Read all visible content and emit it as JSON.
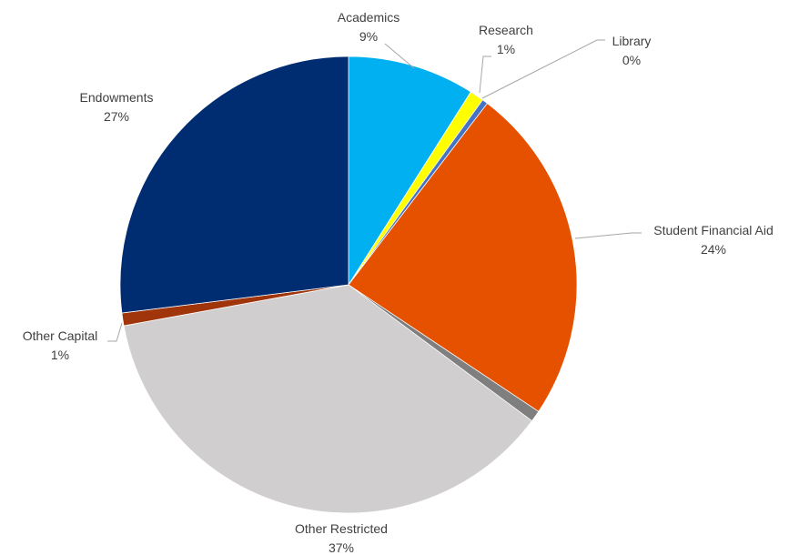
{
  "chart_data": {
    "type": "pie",
    "legend": "none",
    "slices": [
      {
        "key": "academics",
        "label": "Academics",
        "pct_label": "9%",
        "value": 9.0,
        "color": "#00b0f0"
      },
      {
        "key": "research",
        "label": "Research",
        "pct_label": "1%",
        "value": 1.0,
        "color": "#ffff00"
      },
      {
        "key": "library",
        "label": "Library",
        "pct_label": "0%",
        "value": 0.4,
        "color": "#4472c4"
      },
      {
        "key": "student-financial-aid",
        "label": "Student Financial Aid",
        "pct_label": "24%",
        "value": 24.0,
        "color": "#e65100"
      },
      {
        "key": "other-unlabeled",
        "label": "",
        "pct_label": "",
        "value": 0.8,
        "color": "#7f7f7f"
      },
      {
        "key": "other-restricted",
        "label": "Other Restricted",
        "pct_label": "37%",
        "value": 37.0,
        "color": "#d0cece"
      },
      {
        "key": "other-capital",
        "label": "Other Capital",
        "pct_label": "1%",
        "value": 0.9,
        "color": "#a0340b"
      },
      {
        "key": "endowments",
        "label": "Endowments",
        "pct_label": "27%",
        "value": 27.0,
        "color": "#002d72"
      }
    ]
  }
}
